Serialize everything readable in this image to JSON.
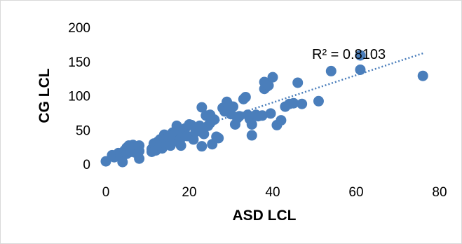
{
  "chart_data": {
    "type": "scatter",
    "title": "",
    "xlabel": "ASD LCL",
    "ylabel": "CG LCL",
    "xlim": [
      0,
      80
    ],
    "ylim": [
      0,
      200
    ],
    "x_ticks": [
      "0",
      "20",
      "40",
      "60",
      "80"
    ],
    "y_ticks": [
      "0",
      "50",
      "100",
      "150",
      "200"
    ],
    "grid": false,
    "legend": "none",
    "marker_color": "#4a7ebb",
    "trendline": {
      "type": "linear",
      "style": "dotted",
      "color": "#4a7ebb",
      "x_range": [
        15,
        76
      ],
      "y_range": [
        40,
        162
      ],
      "label": "R² = 0.8103"
    },
    "points": [
      [
        0,
        4
      ],
      [
        1.5,
        13
      ],
      [
        2,
        10
      ],
      [
        3,
        16
      ],
      [
        3.5,
        12
      ],
      [
        4,
        3
      ],
      [
        4.5,
        20
      ],
      [
        5,
        24
      ],
      [
        5,
        15
      ],
      [
        5.5,
        27
      ],
      [
        6,
        18
      ],
      [
        6,
        22
      ],
      [
        6.5,
        28
      ],
      [
        7,
        17
      ],
      [
        7,
        25
      ],
      [
        7.5,
        21
      ],
      [
        8,
        8
      ],
      [
        8,
        27
      ],
      [
        8,
        19
      ],
      [
        11,
        18
      ],
      [
        11,
        22
      ],
      [
        11.5,
        30
      ],
      [
        12,
        25
      ],
      [
        12,
        20
      ],
      [
        12.5,
        33
      ],
      [
        13,
        28
      ],
      [
        13,
        36
      ],
      [
        13.5,
        23
      ],
      [
        14,
        43
      ],
      [
        14,
        31
      ],
      [
        14.5,
        35
      ],
      [
        15,
        30
      ],
      [
        15,
        40
      ],
      [
        15.5,
        27
      ],
      [
        16,
        38
      ],
      [
        16,
        46
      ],
      [
        16.5,
        44
      ],
      [
        17,
        56
      ],
      [
        17,
        48
      ],
      [
        17.5,
        33
      ],
      [
        18,
        38
      ],
      [
        18,
        27
      ],
      [
        18.5,
        45
      ],
      [
        19,
        52
      ],
      [
        19.5,
        41
      ],
      [
        20,
        58
      ],
      [
        20.5,
        57
      ],
      [
        21,
        36
      ],
      [
        21.5,
        47
      ],
      [
        22,
        53
      ],
      [
        22.5,
        56
      ],
      [
        23,
        83
      ],
      [
        23,
        26
      ],
      [
        23.5,
        44
      ],
      [
        24,
        71
      ],
      [
        24.5,
        56
      ],
      [
        25,
        60
      ],
      [
        25,
        72
      ],
      [
        25.5,
        29
      ],
      [
        26,
        65
      ],
      [
        26.5,
        40
      ],
      [
        27,
        38
      ],
      [
        28,
        82
      ],
      [
        28.5,
        77
      ],
      [
        29,
        91
      ],
      [
        29.5,
        86
      ],
      [
        30,
        73
      ],
      [
        30.5,
        84
      ],
      [
        31,
        58
      ],
      [
        31.5,
        67
      ],
      [
        32,
        70
      ],
      [
        33,
        95
      ],
      [
        33.5,
        98
      ],
      [
        34,
        72
      ],
      [
        34.5,
        66
      ],
      [
        35,
        42
      ],
      [
        35,
        58
      ],
      [
        36,
        72
      ],
      [
        36.5,
        70
      ],
      [
        37.5,
        71
      ],
      [
        38,
        110
      ],
      [
        38.5,
        113
      ],
      [
        38,
        120
      ],
      [
        39,
        115
      ],
      [
        39.5,
        74
      ],
      [
        40,
        127
      ],
      [
        41,
        57
      ],
      [
        42,
        64
      ],
      [
        43,
        84
      ],
      [
        44,
        88
      ],
      [
        45,
        89
      ],
      [
        46,
        119
      ],
      [
        47,
        88
      ],
      [
        51,
        92
      ],
      [
        54,
        136
      ],
      [
        61,
        138
      ],
      [
        61,
        159
      ],
      [
        76,
        129
      ]
    ]
  }
}
